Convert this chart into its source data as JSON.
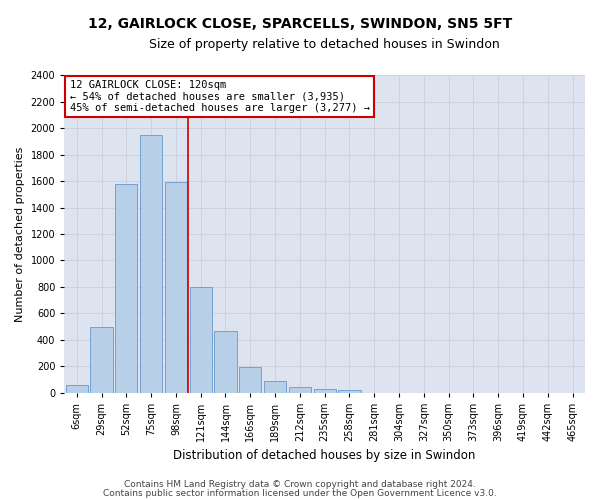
{
  "title1": "12, GAIRLOCK CLOSE, SPARCELLS, SWINDON, SN5 5FT",
  "title2": "Size of property relative to detached houses in Swindon",
  "xlabel": "Distribution of detached houses by size in Swindon",
  "ylabel": "Number of detached properties",
  "categories": [
    "6sqm",
    "29sqm",
    "52sqm",
    "75sqm",
    "98sqm",
    "121sqm",
    "144sqm",
    "166sqm",
    "189sqm",
    "212sqm",
    "235sqm",
    "258sqm",
    "281sqm",
    "304sqm",
    "327sqm",
    "350sqm",
    "373sqm",
    "396sqm",
    "419sqm",
    "442sqm",
    "465sqm"
  ],
  "values": [
    60,
    500,
    1580,
    1950,
    1590,
    800,
    470,
    195,
    90,
    40,
    30,
    20,
    0,
    0,
    0,
    0,
    0,
    0,
    0,
    0,
    0
  ],
  "bar_color": "#b8cfe8",
  "bar_edge_color": "#6699cc",
  "annotation_text": "12 GAIRLOCK CLOSE: 120sqm\n← 54% of detached houses are smaller (3,935)\n45% of semi-detached houses are larger (3,277) →",
  "annotation_box_color": "#ffffff",
  "annotation_box_edge_color": "#cc0000",
  "vline_color": "#cc0000",
  "ylim": [
    0,
    2400
  ],
  "yticks": [
    0,
    200,
    400,
    600,
    800,
    1000,
    1200,
    1400,
    1600,
    1800,
    2000,
    2200,
    2400
  ],
  "grid_color": "#c8d0dc",
  "bg_color": "#dde4ef",
  "footnote1": "Contains HM Land Registry data © Crown copyright and database right 2024.",
  "footnote2": "Contains public sector information licensed under the Open Government Licence v3.0.",
  "title1_fontsize": 10,
  "title2_fontsize": 9,
  "xlabel_fontsize": 8.5,
  "ylabel_fontsize": 8,
  "tick_fontsize": 7,
  "footnote_fontsize": 6.5
}
